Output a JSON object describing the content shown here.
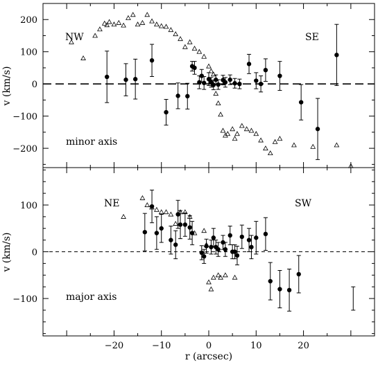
{
  "chart_data": [
    {
      "type": "scatter",
      "xlim": [
        -35,
        35
      ],
      "ylim": [
        -260,
        250
      ],
      "x_ticks": [
        -20,
        -10,
        0,
        10,
        20
      ],
      "y_ticks": [
        -200,
        -100,
        0,
        100,
        200
      ],
      "y_tick_labels": [
        "−200",
        "−100",
        "0",
        "100",
        "200"
      ],
      "ylabel": "v (km/s)",
      "annotations": {
        "left": "NW",
        "right": "SE",
        "caption": "minor axis"
      },
      "reference_line": {
        "y": 0,
        "style": "long dashes"
      },
      "series": [
        {
          "marker": "filled-circle-with-error-bars",
          "points": [
            {
              "x": -21.5,
              "y": 22,
              "err": 80
            },
            {
              "x": -17.5,
              "y": 13,
              "err": 50
            },
            {
              "x": -15.5,
              "y": 15,
              "err": 62
            },
            {
              "x": -12,
              "y": 73,
              "err": 50
            },
            {
              "x": -9,
              "y": -88,
              "err": 40
            },
            {
              "x": -6.5,
              "y": -37,
              "err": 40
            },
            {
              "x": -4.5,
              "y": -38,
              "err": 40
            },
            {
              "x": -3.5,
              "y": 55,
              "err": 15
            },
            {
              "x": -3,
              "y": 50,
              "err": 20
            },
            {
              "x": -2,
              "y": 5,
              "err": 20
            },
            {
              "x": -1.5,
              "y": 25,
              "err": 20
            },
            {
              "x": -1,
              "y": 3,
              "err": 20
            },
            {
              "x": 0,
              "y": 15,
              "err": 20
            },
            {
              "x": 0.5,
              "y": 5,
              "err": 15
            },
            {
              "x": 1,
              "y": -3,
              "err": 15
            },
            {
              "x": 1.5,
              "y": 13,
              "err": 15
            },
            {
              "x": 2,
              "y": -2,
              "err": 15
            },
            {
              "x": 3,
              "y": 12,
              "err": 15
            },
            {
              "x": 3.5,
              "y": 5,
              "err": 15
            },
            {
              "x": 4.5,
              "y": 13,
              "err": 15
            },
            {
              "x": 5.5,
              "y": 2,
              "err": 15
            },
            {
              "x": 6.5,
              "y": 0,
              "err": 15
            },
            {
              "x": 8.5,
              "y": 62,
              "err": 30
            },
            {
              "x": 10,
              "y": 10,
              "err": 25
            },
            {
              "x": 11,
              "y": 0,
              "err": 25
            },
            {
              "x": 12,
              "y": 43,
              "err": 35
            },
            {
              "x": 15,
              "y": 25,
              "err": 45
            },
            {
              "x": 19.5,
              "y": -57,
              "err": 55
            },
            {
              "x": 23,
              "y": -140,
              "err": 95
            },
            {
              "x": 27,
              "y": 90,
              "err": 95
            }
          ]
        },
        {
          "marker": "open-triangle",
          "points": [
            [
              -29,
              130
            ],
            [
              -26.5,
              80
            ],
            [
              -24,
              150
            ],
            [
              -23,
              170
            ],
            [
              -22,
              188
            ],
            [
              -21.5,
              183
            ],
            [
              -21,
              193
            ],
            [
              -20,
              185
            ],
            [
              -19,
              190
            ],
            [
              -18,
              182
            ],
            [
              -17,
              205
            ],
            [
              -16,
              215
            ],
            [
              -15,
              185
            ],
            [
              -14,
              190
            ],
            [
              -13,
              215
            ],
            [
              -12,
              195
            ],
            [
              -11,
              185
            ],
            [
              -10,
              180
            ],
            [
              -9,
              178
            ],
            [
              -8,
              168
            ],
            [
              -7,
              155
            ],
            [
              -6,
              140
            ],
            [
              -5,
              115
            ],
            [
              -4,
              130
            ],
            [
              -3,
              110
            ],
            [
              -2,
              100
            ],
            [
              -1,
              85
            ],
            [
              0,
              55
            ],
            [
              0.5,
              40
            ],
            [
              1,
              30
            ],
            [
              1.5,
              -30
            ],
            [
              2,
              -60
            ],
            [
              2.5,
              -95
            ],
            [
              3,
              -145
            ],
            [
              3.5,
              -160
            ],
            [
              4,
              -155
            ],
            [
              5,
              -140
            ],
            [
              5.5,
              -170
            ],
            [
              6,
              -155
            ],
            [
              7,
              -130
            ],
            [
              8,
              -140
            ],
            [
              9,
              -145
            ],
            [
              10,
              -155
            ],
            [
              11,
              -175
            ],
            [
              12,
              -200
            ],
            [
              13,
              -215
            ],
            [
              14,
              -180
            ],
            [
              15,
              -170
            ],
            [
              18,
              -190
            ],
            [
              22,
              -195
            ],
            [
              27,
              -190
            ],
            [
              30,
              -255
            ]
          ]
        }
      ]
    },
    {
      "type": "scatter",
      "xlim": [
        -35,
        35
      ],
      "ylim": [
        -180,
        180
      ],
      "x_ticks": [
        -20,
        -10,
        0,
        10,
        20
      ],
      "y_ticks": [
        -100,
        0,
        100
      ],
      "y_tick_labels": [
        "−100",
        "0",
        "100"
      ],
      "x_tick_labels": [
        "−20",
        "−10",
        "0",
        "10",
        "20"
      ],
      "xlabel": "r (arcsec)",
      "ylabel": "v (km/s)",
      "annotations": {
        "left": "NE",
        "right": "SW",
        "caption": "major axis"
      },
      "reference_line": {
        "y": 0,
        "style": "short dashes"
      },
      "series": [
        {
          "marker": "filled-circle-with-error-bars",
          "points": [
            {
              "x": -13.5,
              "y": 42,
              "err": 40
            },
            {
              "x": -12,
              "y": 97,
              "err": 35
            },
            {
              "x": -11,
              "y": 40,
              "err": 35
            },
            {
              "x": -10,
              "y": 50,
              "err": 30
            },
            {
              "x": -8,
              "y": 25,
              "err": 30
            },
            {
              "x": -7,
              "y": 15,
              "err": 30
            },
            {
              "x": -6.5,
              "y": 80,
              "err": 30
            },
            {
              "x": -6,
              "y": 58,
              "err": 30
            },
            {
              "x": -5,
              "y": 58,
              "err": 25
            },
            {
              "x": -4,
              "y": 52,
              "err": 25
            },
            {
              "x": -3.5,
              "y": 40,
              "err": 25
            },
            {
              "x": -1.5,
              "y": -2,
              "err": 15
            },
            {
              "x": -1,
              "y": -10,
              "err": 15
            },
            {
              "x": -0.5,
              "y": 12,
              "err": 15
            },
            {
              "x": 0.5,
              "y": 10,
              "err": 15
            },
            {
              "x": 1,
              "y": 30,
              "err": 20
            },
            {
              "x": 1.5,
              "y": 10,
              "err": 15
            },
            {
              "x": 2,
              "y": 5,
              "err": 15
            },
            {
              "x": 3,
              "y": 20,
              "err": 15
            },
            {
              "x": 3.5,
              "y": 5,
              "err": 15
            },
            {
              "x": 4.5,
              "y": 35,
              "err": 20
            },
            {
              "x": 5,
              "y": 0,
              "err": 15
            },
            {
              "x": 5.5,
              "y": 0,
              "err": 15
            },
            {
              "x": 6,
              "y": -8,
              "err": 20
            },
            {
              "x": 7,
              "y": 32,
              "err": 25
            },
            {
              "x": 8.5,
              "y": 25,
              "err": 25
            },
            {
              "x": 9,
              "y": 10,
              "err": 25
            },
            {
              "x": 10,
              "y": 30,
              "err": 35
            },
            {
              "x": 12,
              "y": 38,
              "err": 35
            },
            {
              "x": 13,
              "y": -63,
              "err": 40
            },
            {
              "x": 15,
              "y": -80,
              "err": 40
            },
            {
              "x": 17,
              "y": -82,
              "err": 45
            },
            {
              "x": 19,
              "y": -48,
              "err": 40
            },
            {
              "x": 30.5,
              "y": -100,
              "err": 25,
              "marker": "error-bar-only"
            }
          ]
        },
        {
          "marker": "open-triangle",
          "points": [
            [
              -18,
              75
            ],
            [
              -14,
              115
            ],
            [
              -13,
              100
            ],
            [
              -12,
              95
            ],
            [
              -11,
              90
            ],
            [
              -10,
              85
            ],
            [
              -9,
              85
            ],
            [
              -8,
              80
            ],
            [
              -7,
              60
            ],
            [
              -6,
              85
            ],
            [
              -5,
              85
            ],
            [
              -4,
              75
            ],
            [
              -3,
              40
            ],
            [
              -1,
              45
            ],
            [
              -0.5,
              15
            ],
            [
              0,
              -65
            ],
            [
              0.5,
              -80
            ],
            [
              1,
              -55
            ],
            [
              2,
              -50
            ],
            [
              2.5,
              -55
            ],
            [
              3.5,
              -50
            ],
            [
              5.5,
              -55
            ]
          ]
        }
      ]
    }
  ]
}
